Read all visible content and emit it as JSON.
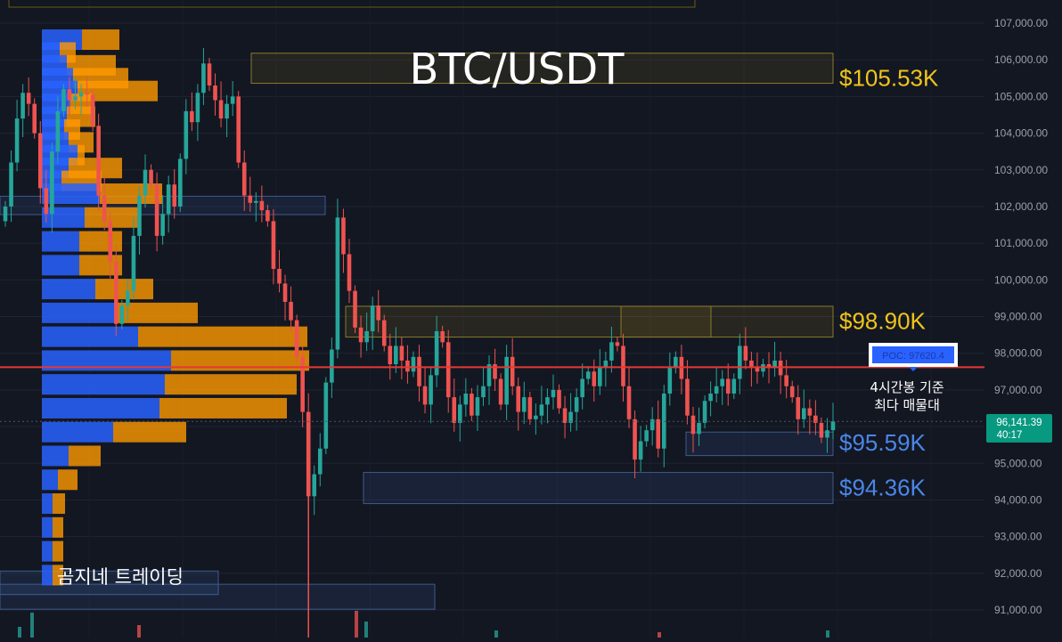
{
  "title": "BTC/USDT",
  "watermark": "곰지네 트레이딩",
  "colors": {
    "background": "#131722",
    "bull": "#26a69a",
    "bear": "#ef5350",
    "zone_gold": "#f0c419",
    "zone_blue": "#4a86e8",
    "poc_line": "#e53935",
    "vp_buy": "#2962ff",
    "vp_sell": "#ff9800",
    "price_tag": "#089981"
  },
  "price_axis": {
    "min": 90700,
    "max": 107300,
    "labels": [
      "107,000.00",
      "106,000.00",
      "105,000.00",
      "104,000.00",
      "103,000.00",
      "102,000.00",
      "101,000.00",
      "100,000.00",
      "99,000.00",
      "98,000.00",
      "97,000.00",
      "96,000.00",
      "95,000.00",
      "94,000.00",
      "93,000.00",
      "92,000.00",
      "91,000.00"
    ]
  },
  "current_price": {
    "price": "96,141.39",
    "countdown": "40:17",
    "value": 96141.39
  },
  "poc": {
    "label": "POC: 97620.4",
    "price": 97620.4,
    "note_line1": "4시간봉 기준",
    "note_line2": "최다 매물대"
  },
  "levels": [
    {
      "label": "$105.53K",
      "price": 105530,
      "color": "gold"
    },
    {
      "label": "$98.90K",
      "price": 98900,
      "color": "gold"
    },
    {
      "label": "$95.59K",
      "price": 95590,
      "color": "blue"
    },
    {
      "label": "$94.36K",
      "price": 94360,
      "color": "blue"
    }
  ],
  "chart_data": {
    "type": "candlestick",
    "title": "BTC/USDT",
    "ylim": [
      90700,
      107300
    ],
    "series_close": [
      102000,
      103200,
      104400,
      105100,
      104800,
      104000,
      102500,
      101800,
      103500,
      104600,
      105200,
      104900,
      105000,
      105100,
      105050,
      104200,
      102300,
      101600,
      100500,
      98800,
      99300,
      99700,
      101200,
      102300,
      103000,
      102600,
      101200,
      101800,
      102600,
      102000,
      103300,
      104600,
      104300,
      105100,
      105900,
      105300,
      104900,
      104400,
      104800,
      105000,
      103200,
      102300,
      102100,
      102150,
      101900,
      101600,
      100300,
      99900,
      99400,
      98900,
      97900,
      96400,
      94100,
      94700,
      95400,
      97200,
      98100,
      101700,
      100700,
      99700,
      98700,
      98300,
      98600,
      99300,
      98900,
      98200,
      97700,
      98200,
      97800,
      97500,
      97900,
      97100,
      96600,
      97400,
      98600,
      98300,
      96800,
      96100,
      96600,
      96900,
      96300,
      96800,
      97100,
      97700,
      97300,
      96600,
      97900,
      97100,
      96400,
      96800,
      96200,
      96300,
      96600,
      96800,
      97000,
      96500,
      96100,
      96400,
      96800,
      97300,
      97500,
      97100,
      97600,
      97800,
      98300,
      98200,
      97100,
      96200,
      95100,
      95600,
      95900,
      96200,
      95400,
      96900,
      97600,
      97900,
      97300,
      96300,
      95800,
      96100,
      96700,
      96900,
      97100,
      97300,
      96900,
      97300,
      98200,
      97800,
      97600,
      97500,
      97700,
      97600,
      97800,
      97400,
      97100,
      96800,
      96200,
      96500,
      96300,
      96100,
      95700,
      95900,
      96141.39
    ],
    "volume_profile": [
      {
        "price": 106550,
        "buy": 45,
        "sell": 42
      },
      {
        "price": 106200,
        "buy": 20,
        "sell": 18
      },
      {
        "price": 105850,
        "buy": 28,
        "sell": 55
      },
      {
        "price": 105500,
        "buy": 35,
        "sell": 62
      },
      {
        "price": 105150,
        "buy": 40,
        "sell": 90
      },
      {
        "price": 104800,
        "buy": 32,
        "sell": 25
      },
      {
        "price": 104450,
        "buy": 28,
        "sell": 32
      },
      {
        "price": 104100,
        "buy": 25,
        "sell": 18
      },
      {
        "price": 103750,
        "buy": 30,
        "sell": 28
      },
      {
        "price": 103400,
        "buy": 40,
        "sell": 8
      },
      {
        "price": 103050,
        "buy": 30,
        "sell": 60
      },
      {
        "price": 102700,
        "buy": 22,
        "sell": 45
      },
      {
        "price": 102350,
        "buy": 65,
        "sell": 70
      },
      {
        "price": 101700,
        "buy": 48,
        "sell": 60
      },
      {
        "price": 101050,
        "buy": 42,
        "sell": 48
      },
      {
        "price": 100400,
        "buy": 42,
        "sell": 48
      },
      {
        "price": 99750,
        "buy": 60,
        "sell": 65
      },
      {
        "price": 99100,
        "buy": 85,
        "sell": 90
      },
      {
        "price": 98450,
        "buy": 108,
        "sell": 190
      },
      {
        "price": 97800,
        "buy": 145,
        "sell": 155
      },
      {
        "price": 97150,
        "buy": 138,
        "sell": 148
      },
      {
        "price": 96500,
        "buy": 132,
        "sell": 143
      },
      {
        "price": 95850,
        "buy": 80,
        "sell": 82
      },
      {
        "price": 95200,
        "buy": 30,
        "sell": 36
      },
      {
        "price": 94550,
        "buy": 18,
        "sell": 22
      },
      {
        "price": 93900,
        "buy": 12,
        "sell": 14
      },
      {
        "price": 93250,
        "buy": 12,
        "sell": 12
      },
      {
        "price": 92600,
        "buy": 12,
        "sell": 12
      },
      {
        "price": 91950,
        "buy": 12,
        "sell": 12
      }
    ]
  }
}
